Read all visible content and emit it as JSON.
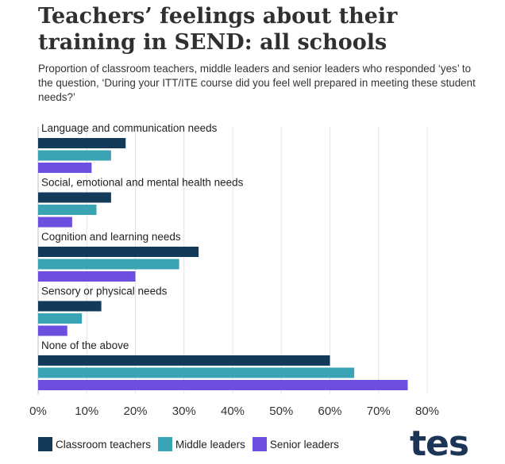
{
  "header": {
    "title": "Teachers’ feelings about their training in SEND: all schools",
    "subtitle": "Proportion of classroom teachers, middle leaders and senior leaders who responded ‘yes’ to the question, ‘During your ITT/ITE course did you feel well prepared in meeting these student needs?’"
  },
  "chart_data": {
    "type": "bar",
    "orientation": "horizontal",
    "title": "Teachers’ feelings about their training in SEND: all schools",
    "subtitle": "Proportion of classroom teachers, middle leaders and senior leaders who responded ‘yes’ to the question, ‘During your ITT/ITE course did you feel well prepared in meeting these student needs?’",
    "categories": [
      "Language and communication needs",
      "Social, emotional and mental health needs",
      "Cognition and learning needs",
      "Sensory or physical needs",
      "None of the above"
    ],
    "series": [
      {
        "name": "Classroom teachers",
        "color": "#143a5a",
        "values": [
          18,
          15,
          33,
          13,
          60
        ]
      },
      {
        "name": "Middle leaders",
        "color": "#3aa3b4",
        "values": [
          15,
          12,
          29,
          9,
          65
        ]
      },
      {
        "name": "Senior leaders",
        "color": "#6d4fe0",
        "values": [
          11,
          7,
          20,
          6,
          76
        ]
      }
    ],
    "xlim": [
      0,
      80
    ],
    "xticks": [
      0,
      10,
      20,
      30,
      40,
      50,
      60,
      70,
      80
    ],
    "xtick_labels": [
      "0%",
      "10%",
      "20%",
      "30%",
      "40%",
      "50%",
      "60%",
      "70%",
      "80%"
    ],
    "xlabel": "",
    "ylabel": "",
    "grid": true,
    "legend_position": "bottom-left"
  },
  "legend": {
    "items": [
      {
        "label": "Classroom teachers",
        "color": "#143a5a"
      },
      {
        "label": "Middle leaders",
        "color": "#3aa3b4"
      },
      {
        "label": "Senior leaders",
        "color": "#6d4fe0"
      }
    ]
  },
  "logo": {
    "text": "tes"
  }
}
